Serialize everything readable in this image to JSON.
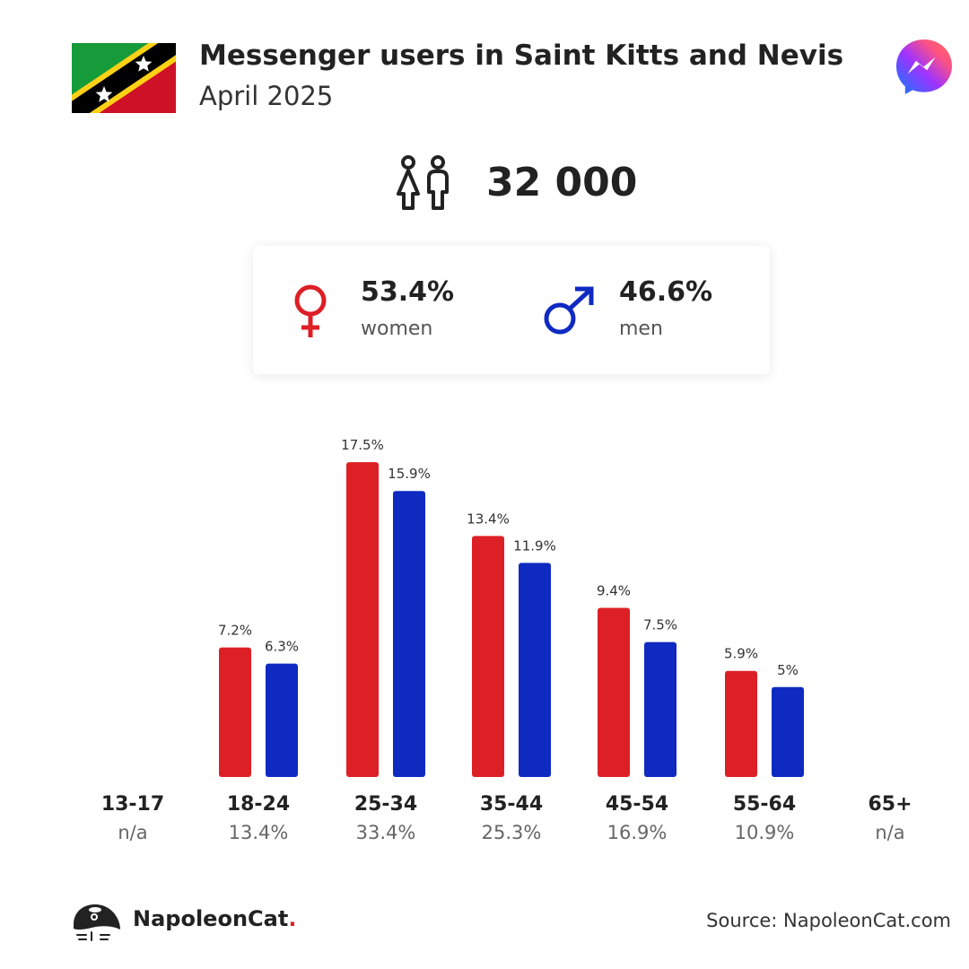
{
  "header": {
    "title": "Messenger users in Saint Kitts and Nevis",
    "date": "April 2025"
  },
  "total": {
    "value": "32 000"
  },
  "gender": {
    "women": {
      "value": "53.4%",
      "label": "women"
    },
    "men": {
      "value": "46.6%",
      "label": "men"
    }
  },
  "colors": {
    "women": "#dd1f26",
    "men": "#0f2ac1",
    "accent": "#e0202a"
  },
  "chart_data": {
    "type": "bar",
    "categories": [
      "13-17",
      "18-24",
      "25-34",
      "35-44",
      "45-54",
      "55-64",
      "65+"
    ],
    "category_totals": [
      "n/a",
      "13.4%",
      "33.4%",
      "25.3%",
      "16.9%",
      "10.9%",
      "n/a"
    ],
    "series": [
      {
        "name": "women",
        "values": [
          null,
          7.2,
          17.5,
          13.4,
          9.4,
          5.9,
          null
        ],
        "labels": [
          "",
          "7.2%",
          "17.5%",
          "13.4%",
          "9.4%",
          "5.9%",
          ""
        ]
      },
      {
        "name": "men",
        "values": [
          null,
          6.3,
          15.9,
          11.9,
          7.5,
          5.0,
          null
        ],
        "labels": [
          "",
          "6.3%",
          "15.9%",
          "11.9%",
          "7.5%",
          "5%",
          ""
        ]
      }
    ],
    "ylim": [
      0,
      17.5
    ]
  },
  "footer": {
    "brand": "NapoleonCat",
    "brand_dot": ".",
    "source": "Source: NapoleonCat.com"
  }
}
